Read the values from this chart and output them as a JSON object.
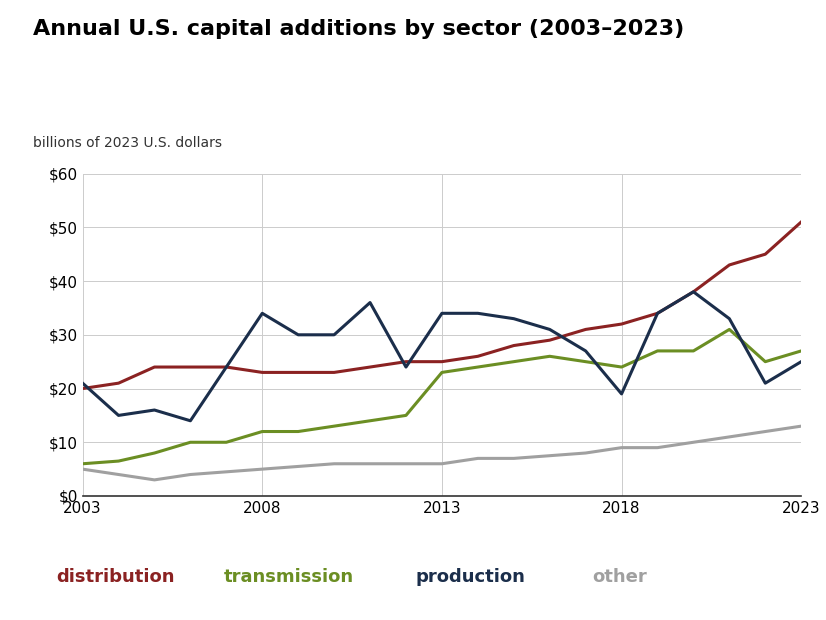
{
  "title": "Annual U.S. capital additions by sector (2003–2023)",
  "ylabel": "billions of 2023 U.S. dollars",
  "years": [
    2003,
    2004,
    2005,
    2006,
    2007,
    2008,
    2009,
    2010,
    2011,
    2012,
    2013,
    2014,
    2015,
    2016,
    2017,
    2018,
    2019,
    2020,
    2021,
    2022,
    2023
  ],
  "distribution": [
    20,
    21,
    24,
    24,
    24,
    23,
    23,
    23,
    24,
    25,
    25,
    26,
    28,
    29,
    31,
    32,
    34,
    38,
    43,
    45,
    51
  ],
  "transmission": [
    6,
    6.5,
    8,
    10,
    10,
    12,
    12,
    13,
    14,
    15,
    23,
    24,
    25,
    26,
    25,
    24,
    27,
    27,
    31,
    25,
    27
  ],
  "production": [
    21,
    15,
    16,
    14,
    24,
    34,
    30,
    30,
    36,
    24,
    34,
    34,
    33,
    31,
    27,
    19,
    34,
    38,
    33,
    21,
    25
  ],
  "other": [
    5,
    4,
    3,
    4,
    4.5,
    5,
    5.5,
    6,
    6,
    6,
    6,
    7,
    7,
    7.5,
    8,
    9,
    9,
    10,
    11,
    12,
    13
  ],
  "distribution_color": "#8B2222",
  "transmission_color": "#6B8E23",
  "production_color": "#1B2E4B",
  "other_color": "#A0A0A0",
  "ylim": [
    0,
    60
  ],
  "yticks": [
    0,
    10,
    20,
    30,
    40,
    50,
    60
  ],
  "xticks": [
    2003,
    2008,
    2013,
    2018,
    2023
  ],
  "legend_labels": [
    "distribution",
    "transmission",
    "production",
    "other"
  ],
  "legend_colors": [
    "#8B2222",
    "#6B8E23",
    "#1B2E4B",
    "#A0A0A0"
  ],
  "background_color": "#FFFFFF",
  "grid_color": "#CCCCCC",
  "line_width": 2.2,
  "title_fontsize": 16,
  "ylabel_fontsize": 10,
  "tick_fontsize": 11,
  "legend_fontsize": 13
}
